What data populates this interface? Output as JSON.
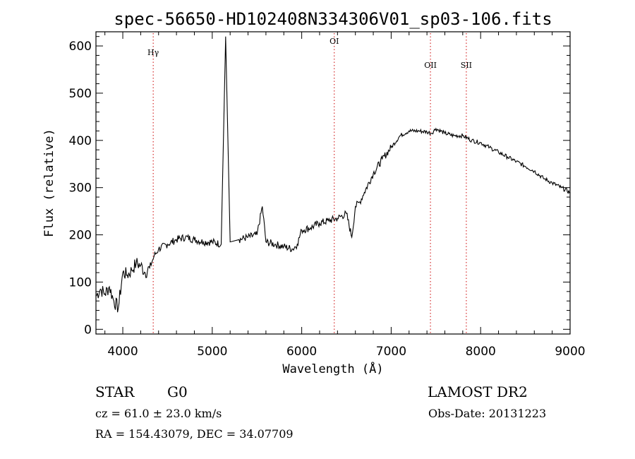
{
  "chart_data": {
    "type": "line",
    "title": "spec-56650-HD102408N334306V01_sp03-106.fits",
    "xlabel": "Wavelength (Å)",
    "ylabel": "Flux (relative)",
    "xlim": [
      3700,
      9000
    ],
    "ylim": [
      -10,
      630
    ],
    "xticks": [
      4000,
      5000,
      6000,
      7000,
      8000,
      9000
    ],
    "yticks": [
      0,
      100,
      200,
      300,
      400,
      500,
      600
    ],
    "lines": [
      {
        "label": "Hγ",
        "wavelength": 4340
      },
      {
        "label": "OI",
        "wavelength": 6364
      },
      {
        "label": "OII",
        "wavelength": 7439
      },
      {
        "label": "SII",
        "wavelength": 7840
      }
    ],
    "line_color": "#cc0000",
    "series": [
      {
        "x": [
          3700,
          3750,
          3800,
          3850,
          3900,
          3950,
          4000,
          4050,
          4100,
          4150,
          4200,
          4250,
          4300,
          4350,
          4400,
          4500,
          4600,
          4700,
          4800,
          4900,
          5000,
          5100,
          5150,
          5200,
          5300,
          5400,
          5500,
          5560,
          5600,
          5700,
          5800,
          5900,
          5950,
          6000,
          6100,
          6200,
          6300,
          6400,
          6500,
          6560,
          6600,
          6650,
          6700,
          6800,
          6900,
          7000,
          7100,
          7200,
          7300,
          7400,
          7450,
          7500,
          7600,
          7700,
          7800,
          7900,
          8000,
          8100,
          8200,
          8300,
          8400,
          8500,
          8600,
          8700,
          8800,
          8900,
          9000
        ],
        "values": [
          70,
          85,
          75,
          90,
          60,
          45,
          120,
          115,
          125,
          140,
          135,
          120,
          130,
          155,
          170,
          180,
          190,
          195,
          190,
          185,
          185,
          180,
          620,
          185,
          190,
          195,
          200,
          260,
          185,
          180,
          175,
          170,
          180,
          210,
          215,
          225,
          230,
          235,
          245,
          195,
          260,
          270,
          290,
          330,
          360,
          385,
          410,
          420,
          420,
          418,
          415,
          425,
          415,
          410,
          410,
          400,
          395,
          385,
          375,
          365,
          355,
          345,
          335,
          320,
          310,
          300,
          290
        ]
      }
    ]
  },
  "info": {
    "object_class": "STAR",
    "subclass": "G0",
    "survey": "LAMOST DR2",
    "cz": "cz = 61.0 ± 23.0 km/s",
    "obs_date": "Obs-Date: 20131223",
    "coords": "RA = 154.43079, DEC =  34.07709"
  }
}
